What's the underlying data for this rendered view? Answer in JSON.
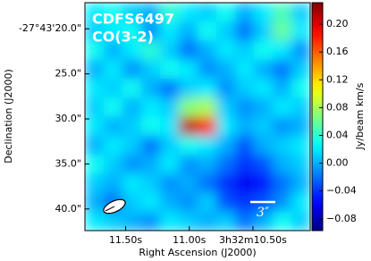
{
  "chart_data": {
    "type": "image",
    "title": "CDFS6497",
    "subtitle": "CO(3-2)",
    "x_label": "Right Ascension (J2000)",
    "y_label": "Declination (J2000)",
    "colorbar_label": "Jy/beam km/s",
    "scalebar_label": "3″",
    "colormap": "jet",
    "xlim": [
      11.82,
      10.05
    ],
    "ylim": [
      42.4,
      17.1
    ],
    "clim": [
      -0.097,
      0.231
    ],
    "xticks": [
      {
        "value": 11.5,
        "label": "11.50s"
      },
      {
        "value": 11.0,
        "label": "11.00s"
      },
      {
        "value": 10.5,
        "label": "3h32m10.50s"
      }
    ],
    "yticks": [
      {
        "value": 20,
        "label": "-27°43'20.0\""
      },
      {
        "value": 25,
        "label": "25.0\""
      },
      {
        "value": 30,
        "label": "30.0\""
      },
      {
        "value": 35,
        "label": "35.0\""
      },
      {
        "value": 40,
        "label": "40.0\""
      }
    ],
    "cticks": [
      {
        "value": 0.2,
        "label": "0.20"
      },
      {
        "value": 0.16,
        "label": "0.16"
      },
      {
        "value": 0.12,
        "label": "0.12"
      },
      {
        "value": 0.08,
        "label": "0.08"
      },
      {
        "value": 0.04,
        "label": "0.04"
      },
      {
        "value": 0,
        "label": "0.00"
      },
      {
        "value": -0.04,
        "label": "−0.04"
      },
      {
        "value": -0.08,
        "label": "−0.08"
      }
    ],
    "image": [
      [
        0.02,
        0.03,
        0.01,
        0.0,
        0.04,
        0.02,
        0.01,
        0.03,
        0.0,
        0.02,
        0.05,
        0.01
      ],
      [
        0.01,
        0.02,
        0.03,
        -0.01,
        0.02,
        0.0,
        0.03,
        0.01,
        -0.02,
        0.01,
        0.06,
        0.02
      ],
      [
        0.03,
        0.0,
        0.02,
        0.04,
        0.01,
        -0.02,
        0.0,
        0.02,
        0.01,
        0.03,
        0.02,
        -0.01
      ],
      [
        0.0,
        0.02,
        -0.01,
        0.01,
        0.03,
        0.02,
        -0.01,
        0.0,
        0.02,
        0.0,
        -0.02,
        0.01
      ],
      [
        0.02,
        0.01,
        0.03,
        0.0,
        -0.02,
        0.01,
        0.02,
        -0.01,
        0.01,
        0.02,
        0.0,
        0.03
      ],
      [
        0.01,
        0.03,
        0.0,
        0.02,
        0.01,
        0.07,
        0.08,
        0.01,
        -0.01,
        0.0,
        0.02,
        0.01
      ],
      [
        0.02,
        0.0,
        0.01,
        0.03,
        0.02,
        0.21,
        0.18,
        0.02,
        0.0,
        0.01,
        -0.01,
        0.0
      ],
      [
        0.0,
        0.02,
        0.01,
        -0.02,
        0.01,
        0.03,
        0.02,
        0.0,
        -0.03,
        0.0,
        0.01,
        0.02
      ],
      [
        0.03,
        0.01,
        -0.01,
        0.0,
        0.02,
        -0.01,
        0.0,
        -0.02,
        -0.04,
        -0.03,
        0.0,
        0.01
      ],
      [
        0.01,
        0.0,
        0.02,
        0.01,
        -0.01,
        0.0,
        -0.02,
        -0.04,
        -0.06,
        -0.05,
        -0.02,
        0.0
      ],
      [
        0.0,
        -0.02,
        0.01,
        0.02,
        0.0,
        -0.01,
        0.01,
        -0.03,
        -0.04,
        -0.03,
        -0.01,
        0.02
      ],
      [
        0.02,
        0.01,
        0.0,
        -0.01,
        0.02,
        0.01,
        0.0,
        0.01,
        -0.02,
        0.0,
        0.03,
        0.01
      ]
    ]
  }
}
